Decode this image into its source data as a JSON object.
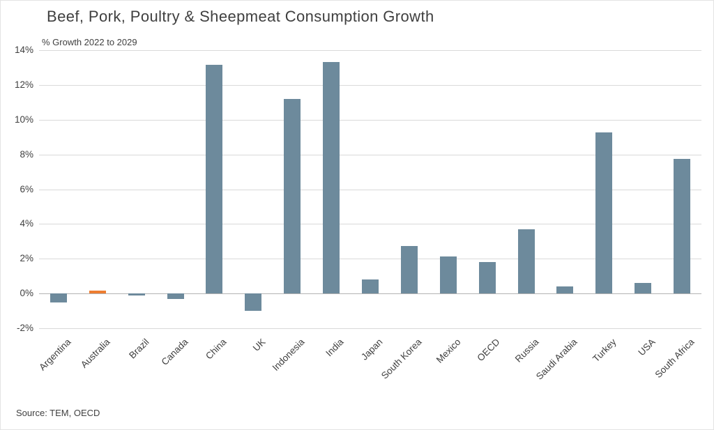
{
  "header": {
    "title": "Beef, Pork, Poultry & Sheepmeat Consumption Growth",
    "subtitle": "% Growth 2022 to 2029"
  },
  "footer": {
    "source": "Source: TEM, OECD"
  },
  "chart_data": {
    "type": "bar",
    "title": "Beef, Pork, Poultry & Sheepmeat Consumption Growth",
    "subtitle": "% Growth 2022 to 2029",
    "categories": [
      "Argentina",
      "Australia",
      "Brazil",
      "Canada",
      "China",
      "UK",
      "Indonesia",
      "India",
      "Japan",
      "South Korea",
      "Mexico",
      "OECD",
      "Russia",
      "Saudi Arabia",
      "Turkey",
      "USA",
      "South Africa"
    ],
    "values": [
      -0.5,
      0.15,
      -0.1,
      -0.3,
      13.15,
      -1.0,
      11.2,
      13.3,
      0.8,
      2.75,
      2.15,
      1.8,
      3.7,
      0.4,
      9.25,
      0.6,
      7.75
    ],
    "highlight_index": 1,
    "bar_color": "#6d8a9c",
    "highlight_color": "#ed7d31",
    "grid_color": "#d9d9d9",
    "xlabel": "",
    "ylabel": "% Growth 2022 to 2029",
    "ylim": [
      -2,
      14
    ],
    "ytick_step": 2,
    "ytick_suffix": "%",
    "grid": true,
    "legend": "none",
    "source": "Source: TEM, OECD"
  }
}
